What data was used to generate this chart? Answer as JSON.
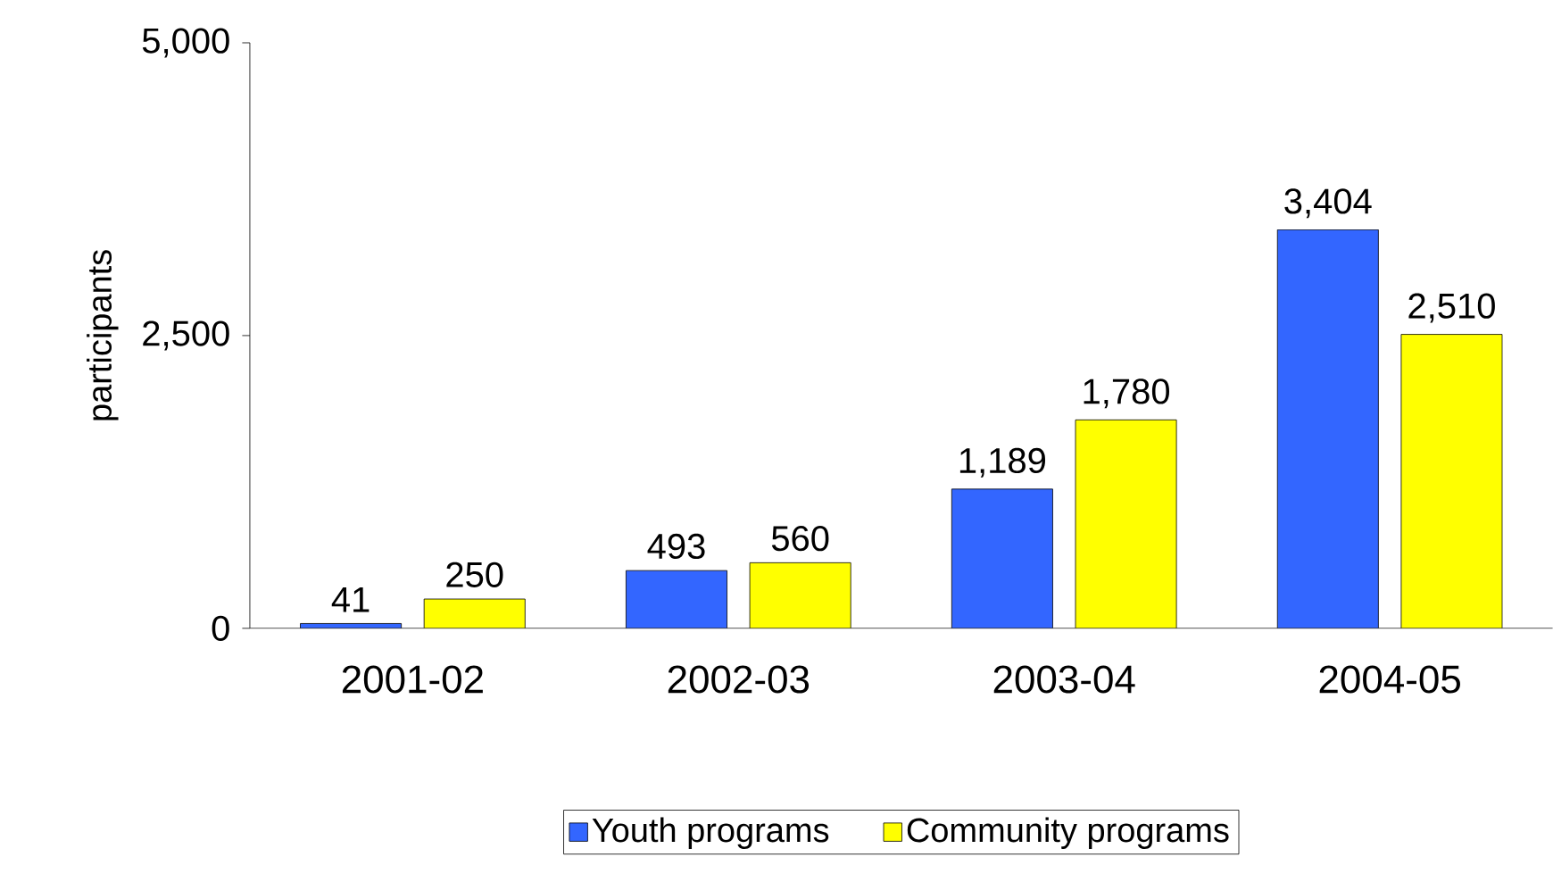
{
  "chart_data": {
    "type": "bar",
    "ylabel": "participants",
    "categories": [
      "2001-02",
      "2002-03",
      "2003-04",
      "2004-05"
    ],
    "series": [
      {
        "name": "Youth programs",
        "color": "#3366ff",
        "values": [
          41,
          493,
          1189,
          3404
        ],
        "value_labels": [
          "41",
          "493",
          "1,189",
          "3,404"
        ]
      },
      {
        "name": "Community programs",
        "color": "#ffff00",
        "values": [
          250,
          560,
          1780,
          2510
        ],
        "value_labels": [
          "250",
          "560",
          "1,780",
          "2,510"
        ]
      }
    ],
    "ylim": [
      0,
      5000
    ],
    "yticks": [
      {
        "value": 0,
        "label": "0"
      },
      {
        "value": 2500,
        "label": "2,500"
      },
      {
        "value": 5000,
        "label": "5,000"
      }
    ],
    "legend": "bottom"
  }
}
